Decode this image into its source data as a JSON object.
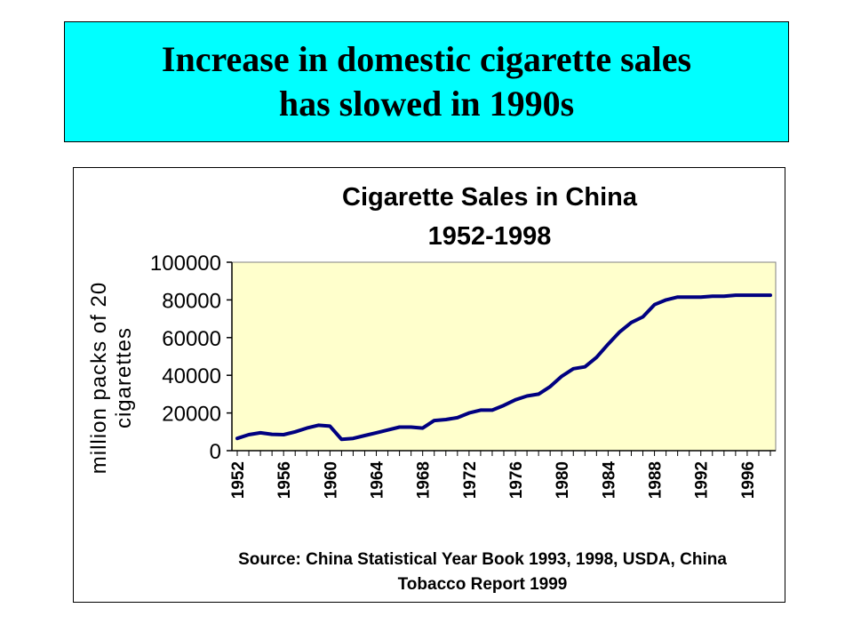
{
  "slide": {
    "title_line1": "Increase in domestic cigarette sales",
    "title_line2": "has slowed in 1990s"
  },
  "colors": {
    "banner_bg": "#00ffff",
    "plot_bg": "#ffffcc",
    "series_line": "#000080"
  },
  "chart_data": {
    "type": "line",
    "title": "Cigarette Sales in China",
    "subtitle": "1952-1998",
    "ylabel_line1": "million packs of 20",
    "ylabel_line2": "cigarettes",
    "xlabel": "",
    "source_line1": "Source: China Statistical Year Book 1993, 1998, USDA, China",
    "source_line2": "Tobacco Report 1999",
    "ylim": [
      0,
      100000
    ],
    "yticks": [
      0,
      20000,
      40000,
      60000,
      80000,
      100000
    ],
    "xticks": [
      1952,
      1956,
      1960,
      1964,
      1968,
      1972,
      1976,
      1980,
      1984,
      1988,
      1992,
      1996
    ],
    "grid": false,
    "legend": "none",
    "series": [
      {
        "x": [
          1952,
          1953,
          1954,
          1955,
          1956,
          1957,
          1958,
          1959,
          1960,
          1961,
          1962,
          1963,
          1964,
          1965,
          1966,
          1967,
          1968,
          1969,
          1970,
          1971,
          1972,
          1973,
          1974,
          1975,
          1976,
          1977,
          1978,
          1979,
          1980,
          1981,
          1982,
          1983,
          1984,
          1985,
          1986,
          1987,
          1988,
          1989,
          1990,
          1991,
          1992,
          1993,
          1994,
          1995,
          1996,
          1997,
          1998
        ],
        "values": [
          6500,
          8500,
          9500,
          8700,
          8500,
          10000,
          12000,
          13500,
          13000,
          6000,
          6500,
          8000,
          9500,
          11000,
          12500,
          12500,
          12000,
          16000,
          16500,
          17500,
          20000,
          21500,
          21500,
          24000,
          27000,
          29000,
          30000,
          34000,
          39500,
          43500,
          44500,
          49500,
          56500,
          63000,
          68000,
          71000,
          77500,
          80000,
          81500,
          81500,
          81500,
          82000,
          82000,
          82500,
          82500,
          82500,
          82500
        ]
      }
    ]
  }
}
